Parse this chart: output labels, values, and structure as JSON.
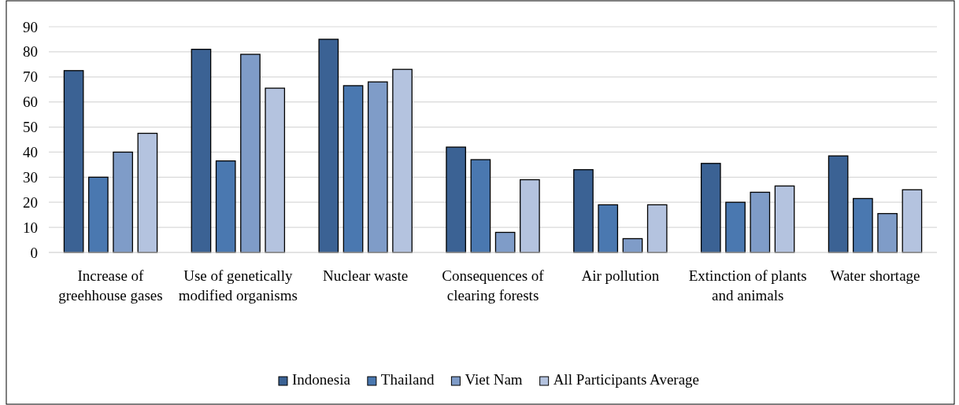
{
  "chart_data": {
    "type": "bar",
    "categories": [
      "Increase of greehhouse gases",
      "Use of genetically modified organisms",
      "Nuclear waste",
      "Consequences of clearing forests",
      "Air pollution",
      "Extinction of plants and animals",
      "Water shortage"
    ],
    "series": [
      {
        "name": "Indonesia",
        "color": "#3b6294",
        "values": [
          72.5,
          81,
          85,
          42,
          33,
          35.5,
          38.5
        ]
      },
      {
        "name": "Thailand",
        "color": "#4a78b0",
        "values": [
          30,
          36.5,
          66.5,
          37,
          19,
          20,
          21.5
        ]
      },
      {
        "name": "Viet Nam",
        "color": "#7f9cc8",
        "values": [
          40,
          79,
          68,
          8,
          5.5,
          24,
          15.5
        ]
      },
      {
        "name": "All Participants Average",
        "color": "#b4c3df",
        "values": [
          47.5,
          65.5,
          73,
          29,
          19,
          26.5,
          25
        ]
      }
    ],
    "ylim": [
      0,
      90
    ],
    "yticks": [
      0,
      10,
      20,
      30,
      40,
      50,
      60,
      70,
      80,
      90
    ],
    "grid": "y",
    "legend": "bottom"
  }
}
